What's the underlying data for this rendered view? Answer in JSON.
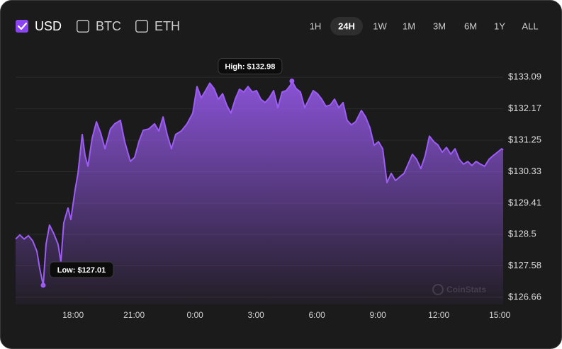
{
  "controls": {
    "currencies": [
      {
        "label": "USD",
        "checked": true
      },
      {
        "label": "BTC",
        "checked": false
      },
      {
        "label": "ETH",
        "checked": false
      }
    ],
    "ranges": [
      {
        "label": "1H",
        "active": false
      },
      {
        "label": "24H",
        "active": true
      },
      {
        "label": "1W",
        "active": false
      },
      {
        "label": "1M",
        "active": false
      },
      {
        "label": "3M",
        "active": false
      },
      {
        "label": "6M",
        "active": false
      },
      {
        "label": "1Y",
        "active": false
      },
      {
        "label": "ALL",
        "active": false
      }
    ]
  },
  "watermark": "CoinStats",
  "chart_data": {
    "type": "area",
    "color": "#9d5cf6",
    "grid": true,
    "x": [
      15.17,
      15.38,
      15.59,
      15.8,
      16.01,
      16.22,
      16.36,
      16.53,
      16.67,
      16.84,
      17.05,
      17.26,
      17.4,
      17.54,
      17.75,
      17.89,
      18.1,
      18.24,
      18.45,
      18.59,
      18.73,
      18.94,
      19.15,
      19.36,
      19.57,
      19.84,
      20.05,
      20.33,
      20.54,
      20.82,
      21.03,
      21.24,
      21.45,
      21.73,
      22.01,
      22.22,
      22.43,
      22.63,
      22.84,
      23.05,
      23.33,
      23.61,
      23.89,
      24.1,
      24.31,
      24.52,
      24.73,
      24.94,
      25.15,
      25.36,
      25.56,
      25.77,
      25.98,
      26.19,
      26.4,
      26.61,
      26.82,
      27.03,
      27.24,
      27.45,
      27.66,
      27.87,
      28.08,
      28.29,
      28.49,
      28.7,
      28.77,
      28.98,
      29.19,
      29.4,
      29.61,
      29.82,
      30.03,
      30.24,
      30.45,
      30.66,
      30.87,
      31.08,
      31.29,
      31.49,
      31.7,
      31.91,
      32.19,
      32.4,
      32.61,
      32.82,
      33.03,
      33.24,
      33.45,
      33.66,
      33.87,
      34.08,
      34.29,
      34.49,
      34.7,
      34.91,
      35.12,
      35.33,
      35.54,
      35.75,
      35.96,
      36.17,
      36.38,
      36.59,
      36.8,
      37.01,
      37.22,
      37.43,
      37.63,
      37.84,
      38.05,
      38.26,
      38.47,
      38.68,
      38.89,
      39.1,
      39.17
    ],
    "values": [
      128.36,
      128.48,
      128.36,
      128.46,
      128.31,
      128.0,
      127.49,
      127.01,
      128.21,
      128.77,
      128.52,
      128.21,
      127.69,
      128.83,
      129.27,
      128.93,
      129.8,
      130.28,
      131.42,
      130.8,
      130.49,
      131.31,
      131.79,
      131.46,
      131.0,
      131.58,
      131.73,
      131.83,
      131.21,
      130.63,
      130.75,
      131.21,
      131.54,
      131.58,
      131.73,
      131.52,
      131.93,
      131.42,
      131.0,
      131.42,
      131.52,
      131.73,
      132.04,
      132.82,
      132.49,
      132.7,
      132.92,
      132.76,
      132.45,
      132.61,
      132.28,
      132.04,
      132.45,
      132.74,
      132.66,
      132.82,
      132.66,
      132.7,
      132.45,
      132.35,
      132.49,
      132.7,
      132.2,
      132.66,
      132.7,
      132.86,
      132.98,
      132.76,
      132.66,
      132.2,
      132.45,
      132.7,
      132.61,
      132.45,
      132.24,
      132.28,
      132.45,
      132.2,
      132.35,
      131.83,
      131.7,
      131.79,
      132.12,
      131.93,
      131.62,
      131.1,
      131.21,
      131.0,
      130.01,
      130.28,
      130.07,
      130.18,
      130.28,
      130.55,
      130.84,
      130.69,
      130.42,
      130.8,
      131.37,
      131.21,
      131.11,
      130.9,
      131.04,
      130.84,
      131.0,
      130.69,
      130.55,
      130.63,
      130.51,
      130.63,
      130.55,
      130.49,
      130.69,
      130.8,
      130.9,
      131.0,
      130.96
    ],
    "xlim": [
      15.17,
      39.17
    ],
    "xticks": [
      {
        "value": 18,
        "label": "18:00"
      },
      {
        "value": 21,
        "label": "21:00"
      },
      {
        "value": 24,
        "label": "0:00"
      },
      {
        "value": 27,
        "label": "3:00"
      },
      {
        "value": 30,
        "label": "6:00"
      },
      {
        "value": 33,
        "label": "9:00"
      },
      {
        "value": 36,
        "label": "12:00"
      },
      {
        "value": 39,
        "label": "15:00"
      }
    ],
    "ylim": [
      126.45,
      133.59
    ],
    "yticks": [
      {
        "value": 133.09,
        "label": "$133.09"
      },
      {
        "value": 132.17,
        "label": "$132.17"
      },
      {
        "value": 131.25,
        "label": "$131.25"
      },
      {
        "value": 130.33,
        "label": "$130.33"
      },
      {
        "value": 129.41,
        "label": "$129.41"
      },
      {
        "value": 128.5,
        "label": "$128.5"
      },
      {
        "value": 127.58,
        "label": "$127.58"
      },
      {
        "value": 126.66,
        "label": "$126.66"
      }
    ],
    "annotations": [
      {
        "label": "High: $132.98",
        "x": 28.77,
        "value": 132.98,
        "side": "above"
      },
      {
        "label": "Low: $127.01",
        "x": 16.53,
        "value": 127.01,
        "side": "below"
      }
    ]
  }
}
